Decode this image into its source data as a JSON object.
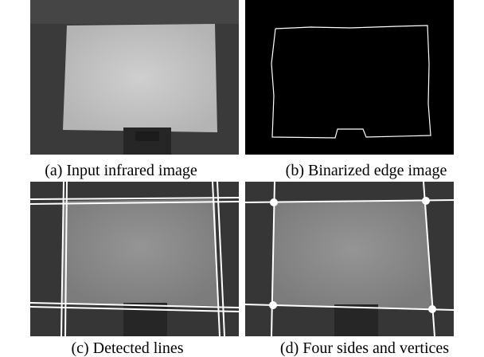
{
  "figure": {
    "panels": [
      {
        "caption": "(a) Input infrared image"
      },
      {
        "caption": "(b) Binarized edge image"
      },
      {
        "caption": "(c) Detected lines"
      },
      {
        "caption": "(d) Four sides and vertices"
      }
    ]
  }
}
